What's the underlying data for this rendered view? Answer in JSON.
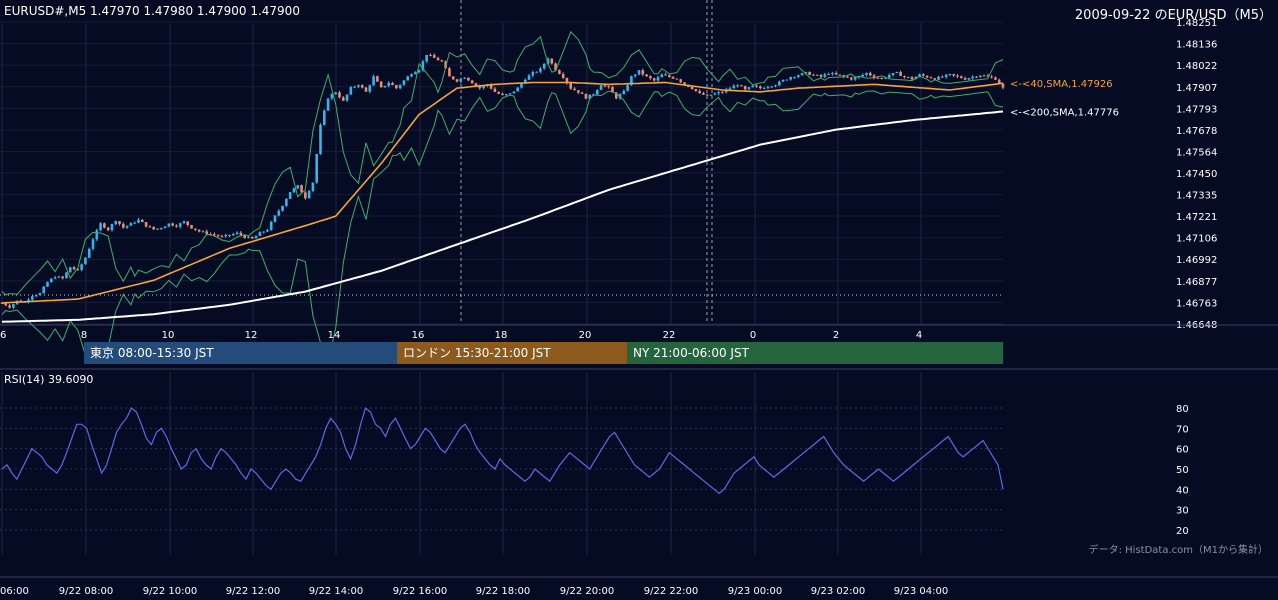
{
  "header": {
    "symbol_line": "EURUSD#,M5 1.47970 1.47980 1.47900 1.47900",
    "date_title": "2009-09-22 のEUR/USD（M5）"
  },
  "colors": {
    "background": "#050b23",
    "up_candle": "#33b6ea",
    "down_candle": "#ec8b77",
    "sma40": "#f6a437",
    "sma200": "#ffffff",
    "bollinger": "#3fae6c",
    "rsi": "#5a6be8",
    "tokyo_session": "#244c7b",
    "london_session": "#8b5a1c",
    "ny_session": "#24653e"
  },
  "sessions": [
    {
      "label": "東京 08:00-15:30 JST"
    },
    {
      "label": "ロンドン 15:30-21:00 JST"
    },
    {
      "label": "NY 21:00-06:00 JST"
    }
  ],
  "rsi": {
    "label": "RSI(14) 39.6090",
    "ticks": [
      "80",
      "70",
      "60",
      "50",
      "40",
      "30",
      "20"
    ]
  },
  "source": "データ: HistData.com（M1から集計）",
  "chart_data": {
    "type": "candlestick",
    "title": "2009-09-22 のEUR/USD（M5）",
    "price_axis_ticks": [
      "1.48251",
      "1.48136",
      "1.48022",
      "1.47907",
      "1.47793",
      "1.47678",
      "1.47564",
      "1.47450",
      "1.47335",
      "1.47221",
      "1.47106",
      "1.46992",
      "1.46877",
      "1.46763",
      "1.46648"
    ],
    "ylim": [
      1.46648,
      1.48251
    ],
    "hour_ticks": [
      "6",
      "8",
      "10",
      "12",
      "14",
      "16",
      "18",
      "20",
      "22",
      "0",
      "2",
      "4"
    ],
    "bottom_time_labels": [
      "06:00",
      "9/22 08:00",
      "9/22 10:00",
      "9/22 12:00",
      "9/22 14:00",
      "9/22 16:00",
      "9/22 18:00",
      "9/22 20:00",
      "9/22 22:00",
      "9/23 00:00",
      "9/23 02:00",
      "9/23 04:00"
    ],
    "indicator_labels": {
      "sma40": "<-<40,SMA,1.47926",
      "sma200": "<-<200,SMA,1.47776"
    },
    "series": [
      {
        "name": "40,SMA",
        "last": 1.47926
      },
      {
        "name": "200,SMA",
        "last": 1.47776
      }
    ],
    "price_path": [
      [
        0,
        1.4676
      ],
      [
        2,
        1.4674
      ],
      [
        4,
        1.4677
      ],
      [
        6,
        1.46765
      ],
      [
        8,
        1.468
      ],
      [
        10,
        1.4681
      ],
      [
        12,
        1.4687
      ],
      [
        14,
        1.469
      ],
      [
        16,
        1.4689
      ],
      [
        18,
        1.4695
      ],
      [
        20,
        1.4693
      ],
      [
        22,
        1.47
      ],
      [
        24,
        1.471
      ],
      [
        26,
        1.4718
      ],
      [
        28,
        1.4715
      ],
      [
        30,
        1.472
      ],
      [
        32,
        1.4716
      ],
      [
        34,
        1.4718
      ],
      [
        36,
        1.472
      ],
      [
        38,
        1.4717
      ],
      [
        40,
        1.4715
      ],
      [
        42,
        1.4716
      ],
      [
        44,
        1.4718
      ],
      [
        46,
        1.4717
      ],
      [
        48,
        1.4719
      ],
      [
        50,
        1.4716
      ],
      [
        52,
        1.4714
      ],
      [
        54,
        1.4713
      ],
      [
        56,
        1.4712
      ],
      [
        58,
        1.4711
      ],
      [
        60,
        1.4712
      ],
      [
        62,
        1.4713
      ],
      [
        64,
        1.4711
      ],
      [
        66,
        1.471
      ],
      [
        68,
        1.4713
      ],
      [
        70,
        1.4715
      ],
      [
        72,
        1.4722
      ],
      [
        74,
        1.4728
      ],
      [
        76,
        1.4735
      ],
      [
        78,
        1.4738
      ],
      [
        80,
        1.4732
      ],
      [
        82,
        1.474
      ],
      [
        84,
        1.477
      ],
      [
        86,
        1.4785
      ],
      [
        88,
        1.4788
      ],
      [
        90,
        1.4783
      ],
      [
        92,
        1.479
      ],
      [
        94,
        1.4792
      ],
      [
        96,
        1.4788
      ],
      [
        98,
        1.4796
      ],
      [
        100,
        1.479
      ],
      [
        102,
        1.4793
      ],
      [
        104,
        1.479
      ],
      [
        106,
        1.4794
      ],
      [
        108,
        1.4798
      ],
      [
        110,
        1.48
      ],
      [
        112,
        1.4808
      ],
      [
        114,
        1.4806
      ],
      [
        116,
        1.4804
      ],
      [
        118,
        1.4796
      ],
      [
        120,
        1.4794
      ],
      [
        122,
        1.4796
      ],
      [
        124,
        1.4793
      ],
      [
        126,
        1.479
      ],
      [
        128,
        1.4792
      ],
      [
        130,
        1.4788
      ],
      [
        132,
        1.4786
      ],
      [
        134,
        1.4787
      ],
      [
        136,
        1.479
      ],
      [
        138,
        1.4795
      ],
      [
        140,
        1.4798
      ],
      [
        142,
        1.48
      ],
      [
        144,
        1.4806
      ],
      [
        146,
        1.48
      ],
      [
        148,
        1.4796
      ],
      [
        150,
        1.479
      ],
      [
        152,
        1.4788
      ],
      [
        154,
        1.4785
      ],
      [
        156,
        1.4787
      ],
      [
        158,
        1.4792
      ],
      [
        160,
        1.479
      ],
      [
        162,
        1.4785
      ],
      [
        164,
        1.4788
      ],
      [
        166,
        1.4796
      ],
      [
        168,
        1.4799
      ],
      [
        170,
        1.4796
      ],
      [
        172,
        1.4794
      ],
      [
        174,
        1.4797
      ],
      [
        176,
        1.4796
      ],
      [
        178,
        1.4795
      ],
      [
        180,
        1.4792
      ],
      [
        182,
        1.479
      ],
      [
        184,
        1.4787
      ],
      [
        186,
        1.4786
      ],
      [
        188,
        1.4787
      ],
      [
        190,
        1.4788
      ],
      [
        192,
        1.479
      ],
      [
        194,
        1.4792
      ],
      [
        196,
        1.4789
      ],
      [
        198,
        1.4791
      ],
      [
        200,
        1.479
      ],
      [
        202,
        1.4791
      ],
      [
        204,
        1.4792
      ],
      [
        206,
        1.4794
      ],
      [
        208,
        1.4796
      ],
      [
        210,
        1.4797
      ],
      [
        212,
        1.4798
      ],
      [
        214,
        1.4797
      ],
      [
        216,
        1.4796
      ],
      [
        218,
        1.4798
      ],
      [
        220,
        1.4797
      ],
      [
        222,
        1.4796
      ],
      [
        224,
        1.4795
      ],
      [
        226,
        1.4796
      ],
      [
        228,
        1.4798
      ],
      [
        230,
        1.4796
      ],
      [
        232,
        1.4795
      ],
      [
        234,
        1.4797
      ],
      [
        236,
        1.4798
      ],
      [
        238,
        1.4796
      ],
      [
        240,
        1.4795
      ],
      [
        242,
        1.4797
      ],
      [
        244,
        1.4796
      ],
      [
        246,
        1.4795
      ],
      [
        248,
        1.4796
      ],
      [
        250,
        1.4797
      ],
      [
        252,
        1.4796
      ],
      [
        254,
        1.4795
      ],
      [
        256,
        1.4796
      ],
      [
        258,
        1.4797
      ],
      [
        260,
        1.4796
      ],
      [
        262,
        1.4795
      ],
      [
        264,
        1.479
      ]
    ],
    "sma40_path": [
      [
        0,
        1.4676
      ],
      [
        20,
        1.4678
      ],
      [
        40,
        1.4688
      ],
      [
        60,
        1.4705
      ],
      [
        70,
        1.4711
      ],
      [
        80,
        1.4717
      ],
      [
        88,
        1.4722
      ],
      [
        100,
        1.475
      ],
      [
        110,
        1.4776
      ],
      [
        120,
        1.479
      ],
      [
        130,
        1.4792
      ],
      [
        140,
        1.4793
      ],
      [
        150,
        1.4793
      ],
      [
        160,
        1.4792
      ],
      [
        175,
        1.4793
      ],
      [
        190,
        1.4789
      ],
      [
        200,
        1.4788
      ],
      [
        210,
        1.479
      ],
      [
        230,
        1.4792
      ],
      [
        250,
        1.4789
      ],
      [
        264,
        1.47926
      ]
    ],
    "sma200_path": [
      [
        0,
        1.4666
      ],
      [
        20,
        1.4667
      ],
      [
        40,
        1.467
      ],
      [
        60,
        1.4675
      ],
      [
        80,
        1.4682
      ],
      [
        100,
        1.4693
      ],
      [
        120,
        1.4707
      ],
      [
        140,
        1.4721
      ],
      [
        160,
        1.4736
      ],
      [
        180,
        1.4748
      ],
      [
        200,
        1.476
      ],
      [
        220,
        1.4768
      ],
      [
        240,
        1.4773
      ],
      [
        264,
        1.47776
      ]
    ],
    "rsi_values": [
      50,
      52,
      48,
      45,
      50,
      55,
      60,
      58,
      56,
      52,
      50,
      48,
      52,
      58,
      65,
      72,
      72,
      70,
      62,
      55,
      48,
      52,
      60,
      68,
      72,
      75,
      80,
      78,
      72,
      65,
      62,
      68,
      70,
      66,
      60,
      55,
      50,
      52,
      58,
      60,
      55,
      52,
      50,
      56,
      60,
      58,
      55,
      52,
      48,
      45,
      50,
      48,
      45,
      42,
      40,
      44,
      48,
      50,
      48,
      45,
      44,
      48,
      52,
      56,
      62,
      70,
      75,
      72,
      68,
      60,
      55,
      62,
      72,
      80,
      78,
      72,
      70,
      66,
      72,
      75,
      70,
      65,
      60,
      62,
      66,
      70,
      68,
      64,
      60,
      58,
      62,
      66,
      70,
      72,
      68,
      62,
      58,
      55,
      52,
      50,
      55,
      52,
      50,
      48,
      46,
      44,
      46,
      50,
      48,
      46,
      44,
      48,
      52,
      55,
      58,
      56,
      54,
      52,
      50,
      54,
      58,
      62,
      66,
      68,
      64,
      60,
      56,
      52,
      50,
      48,
      46,
      48,
      50,
      54,
      58,
      56,
      54,
      52,
      50,
      48,
      46,
      44,
      42,
      40,
      38,
      40,
      44,
      48,
      50,
      52,
      54,
      56,
      52,
      50,
      48,
      46,
      48,
      50,
      52,
      54,
      56,
      58,
      60,
      62,
      64,
      66,
      62,
      58,
      55,
      52,
      50,
      48,
      46,
      44,
      46,
      48,
      50,
      48,
      46,
      44,
      46,
      48,
      50,
      52,
      54,
      56,
      58,
      60,
      62,
      64,
      66,
      62,
      58,
      56,
      58,
      60,
      62,
      64,
      60,
      56,
      52,
      40
    ]
  }
}
